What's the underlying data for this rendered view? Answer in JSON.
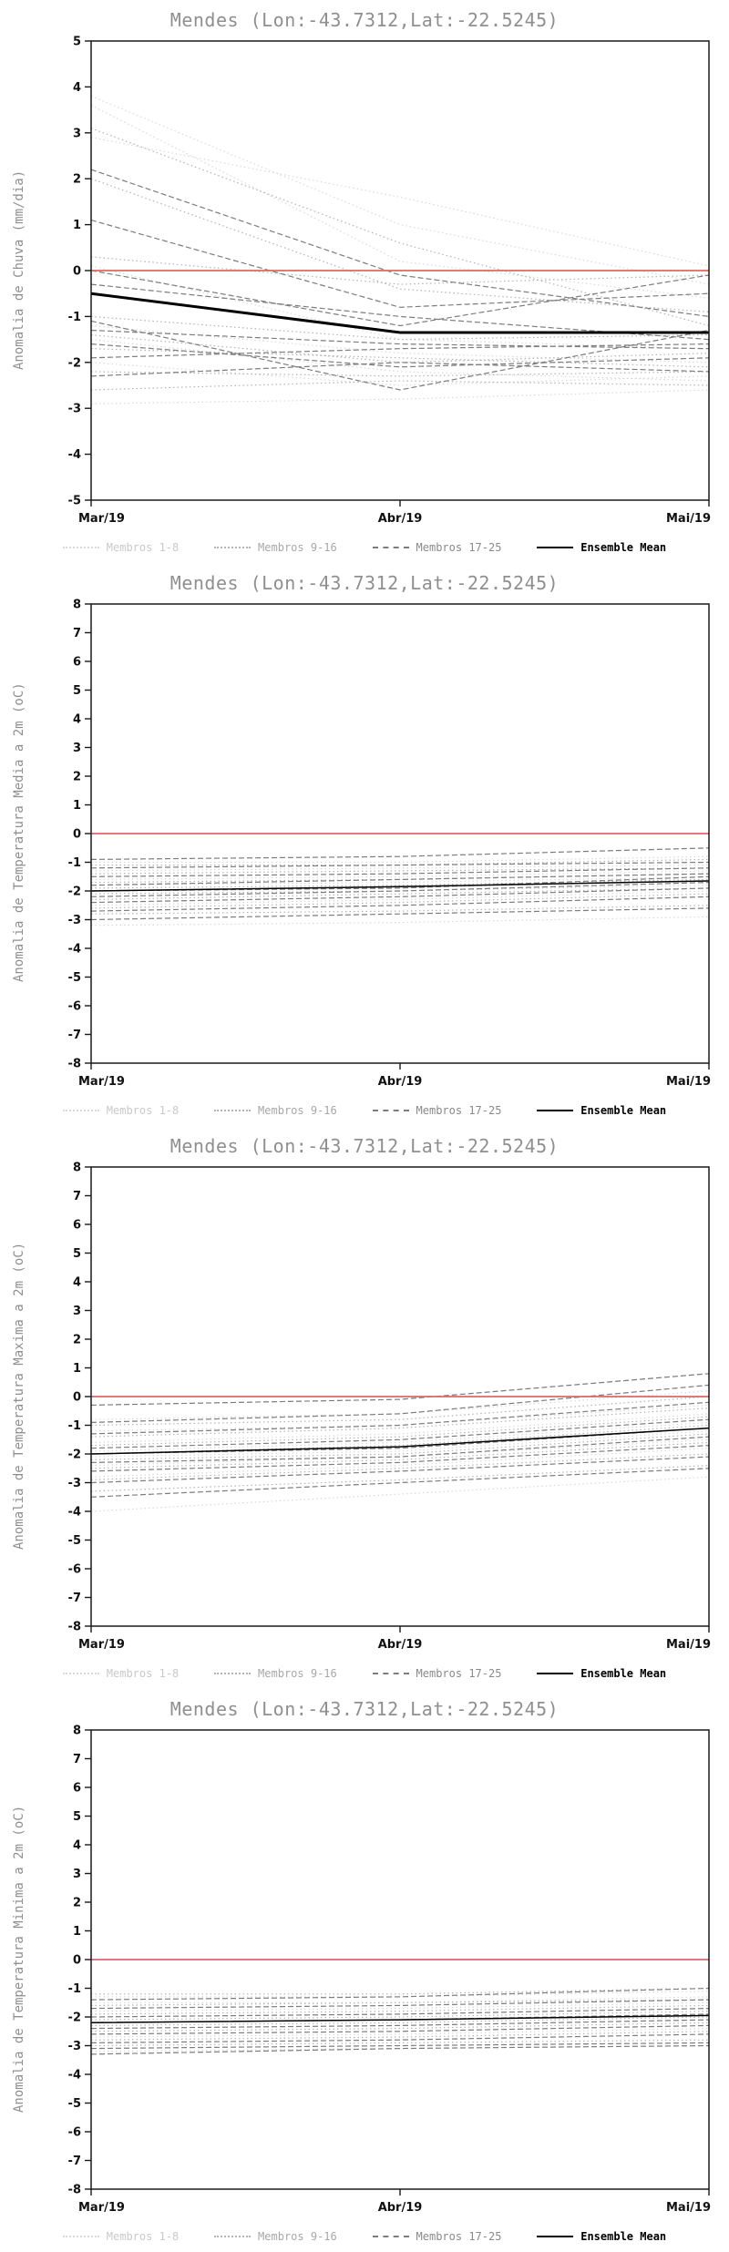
{
  "colors": {
    "zero_line": "#e06666",
    "axis": "#1a1a1a",
    "title_text": "#8f8f8f",
    "tick_text": "#111111"
  },
  "legend": {
    "items": [
      {
        "label": "Membros 1-8",
        "color": "#d9d9d9",
        "label_color": "#c9c9c9",
        "css_style": "dotted",
        "dash": "1.5,3",
        "label_bold": false
      },
      {
        "label": "Membros 9-16",
        "color": "#b3b3b3",
        "label_color": "#a8a8a8",
        "css_style": "dotted",
        "dash": "1.5,3",
        "label_bold": false
      },
      {
        "label": "Membros 17-25",
        "color": "#7d7d7d",
        "label_color": "#8a8a8a",
        "css_style": "dashed",
        "dash": "6,3",
        "label_bold": false
      },
      {
        "label": "Ensemble Mean",
        "color": "#000000",
        "label_color": "#000000",
        "css_style": "solid",
        "dash": "",
        "label_bold": true
      }
    ]
  },
  "chart_data": [
    {
      "type": "line",
      "title": "Mendes (Lon:-43.7312,Lat:-22.5245)",
      "ylabel": "Anomalia de Chuva (mm/dia)",
      "x": [
        "Mar/19",
        "Abr/19",
        "Mai/19"
      ],
      "ylim": [
        -5,
        5
      ],
      "ytick_step": 1,
      "zero_line": 0,
      "mean_line_width": 3,
      "groups": [
        {
          "name": "Membros 1-8",
          "members": [
            [
              3.8,
              1.0,
              -0.3
            ],
            [
              3.6,
              0.2,
              -0.6
            ],
            [
              2.9,
              1.6,
              0.1
            ],
            [
              0.1,
              -1.5,
              -1.7
            ],
            [
              -1.2,
              -1.8,
              -2.0
            ],
            [
              -1.5,
              -2.2,
              -2.4
            ],
            [
              -2.0,
              -2.5,
              -2.3
            ],
            [
              -2.9,
              -2.8,
              -2.6
            ]
          ]
        },
        {
          "name": "Membros 9-16",
          "members": [
            [
              3.1,
              0.6,
              -1.2
            ],
            [
              2.0,
              -0.4,
              -0.9
            ],
            [
              0.3,
              -0.3,
              -0.1
            ],
            [
              -1.0,
              -1.5,
              -1.4
            ],
            [
              -1.4,
              -2.0,
              -1.8
            ],
            [
              -1.7,
              -1.9,
              -2.1
            ],
            [
              -2.2,
              -2.3,
              -2.2
            ],
            [
              -2.6,
              -2.4,
              -2.5
            ]
          ]
        },
        {
          "name": "Membros 17-25",
          "members": [
            [
              2.2,
              -0.1,
              -1.0
            ],
            [
              1.1,
              -0.8,
              -0.5
            ],
            [
              0.0,
              -1.2,
              -0.1
            ],
            [
              -0.3,
              -1.0,
              -1.5
            ],
            [
              -1.1,
              -2.6,
              -1.3
            ],
            [
              -1.3,
              -1.6,
              -1.7
            ],
            [
              -1.6,
              -2.1,
              -1.9
            ],
            [
              -1.9,
              -1.7,
              -1.6
            ],
            [
              -2.3,
              -2.0,
              -2.2
            ]
          ]
        }
      ],
      "ensemble_mean": [
        -0.5,
        -1.35,
        -1.35
      ]
    },
    {
      "type": "line",
      "title": "Mendes (Lon:-43.7312,Lat:-22.5245)",
      "ylabel": "Anomalia de Temperatura Media a 2m (oC)",
      "x": [
        "Mar/19",
        "Abr/19",
        "Mai/19"
      ],
      "ylim": [
        -8,
        8
      ],
      "ytick_step": 1,
      "zero_line": 0,
      "mean_line_width": 1.5,
      "groups": [
        {
          "name": "Membros 1-8",
          "members": [
            [
              -1.0,
              -1.0,
              -0.8
            ],
            [
              -1.3,
              -1.2,
              -1.1
            ],
            [
              -1.6,
              -1.5,
              -1.3
            ],
            [
              -1.8,
              -1.7,
              -1.5
            ],
            [
              -2.0,
              -1.9,
              -1.6
            ],
            [
              -2.2,
              -2.0,
              -1.8
            ],
            [
              -2.5,
              -2.3,
              -2.0
            ],
            [
              -3.2,
              -3.1,
              -2.9
            ]
          ]
        },
        {
          "name": "Membros 9-16",
          "members": [
            [
              -1.1,
              -1.1,
              -0.9
            ],
            [
              -1.4,
              -1.3,
              -1.2
            ],
            [
              -1.7,
              -1.6,
              -1.4
            ],
            [
              -1.9,
              -1.8,
              -1.6
            ],
            [
              -2.1,
              -2.0,
              -1.7
            ],
            [
              -2.3,
              -2.1,
              -1.9
            ],
            [
              -2.6,
              -2.4,
              -2.1
            ],
            [
              -2.8,
              -2.7,
              -2.5
            ]
          ]
        },
        {
          "name": "Membros 17-25",
          "members": [
            [
              -0.9,
              -0.8,
              -0.5
            ],
            [
              -1.2,
              -1.1,
              -1.0
            ],
            [
              -1.5,
              -1.4,
              -1.2
            ],
            [
              -1.8,
              -1.6,
              -1.4
            ],
            [
              -2.0,
              -1.9,
              -1.5
            ],
            [
              -2.2,
              -2.0,
              -1.7
            ],
            [
              -2.4,
              -2.2,
              -1.9
            ],
            [
              -2.7,
              -2.5,
              -2.2
            ],
            [
              -3.0,
              -2.8,
              -2.6
            ]
          ]
        }
      ],
      "ensemble_mean": [
        -2.0,
        -1.85,
        -1.65
      ]
    },
    {
      "type": "line",
      "title": "Mendes (Lon:-43.7312,Lat:-22.5245)",
      "ylabel": "Anomalia de Temperatura Maxima a 2m (oC)",
      "x": [
        "Mar/19",
        "Abr/19",
        "Mai/19"
      ],
      "ylim": [
        -8,
        8
      ],
      "ytick_step": 1,
      "zero_line": 0,
      "mean_line_width": 1.5,
      "groups": [
        {
          "name": "Membros 1-8",
          "members": [
            [
              -0.8,
              -0.6,
              0.2
            ],
            [
              -1.2,
              -1.0,
              -0.3
            ],
            [
              -1.6,
              -1.3,
              -0.6
            ],
            [
              -1.9,
              -1.6,
              -0.9
            ],
            [
              -2.1,
              -1.9,
              -1.2
            ],
            [
              -2.4,
              -2.1,
              -1.5
            ],
            [
              -2.8,
              -2.4,
              -1.8
            ],
            [
              -4.0,
              -3.4,
              -2.8
            ]
          ]
        },
        {
          "name": "Membros 9-16",
          "members": [
            [
              -1.0,
              -0.8,
              0.0
            ],
            [
              -1.4,
              -1.1,
              -0.4
            ],
            [
              -1.7,
              -1.4,
              -0.7
            ],
            [
              -2.0,
              -1.7,
              -1.0
            ],
            [
              -2.2,
              -2.0,
              -1.3
            ],
            [
              -2.5,
              -2.2,
              -1.6
            ],
            [
              -2.9,
              -2.5,
              -2.0
            ],
            [
              -3.3,
              -2.9,
              -2.4
            ]
          ]
        },
        {
          "name": "Membros 17-25",
          "members": [
            [
              -0.3,
              -0.1,
              0.8
            ],
            [
              -0.9,
              -0.6,
              0.4
            ],
            [
              -1.3,
              -1.0,
              -0.2
            ],
            [
              -1.8,
              -1.5,
              -0.8
            ],
            [
              -2.0,
              -1.8,
              -1.1
            ],
            [
              -2.3,
              -2.1,
              -1.4
            ],
            [
              -2.6,
              -2.3,
              -1.7
            ],
            [
              -3.0,
              -2.6,
              -2.1
            ],
            [
              -3.5,
              -3.0,
              -2.5
            ]
          ]
        }
      ],
      "ensemble_mean": [
        -2.0,
        -1.75,
        -1.1
      ]
    },
    {
      "type": "line",
      "title": "Mendes (Lon:-43.7312,Lat:-22.5245)",
      "ylabel": "Anomalia de Temperatura Minima a 2m (oC)",
      "x": [
        "Mar/19",
        "Abr/19",
        "Mai/19"
      ],
      "ylim": [
        -8,
        8
      ],
      "ytick_step": 1,
      "zero_line": 0,
      "mean_line_width": 1.5,
      "groups": [
        {
          "name": "Membros 1-8",
          "members": [
            [
              -1.3,
              -1.3,
              -1.1
            ],
            [
              -1.5,
              -1.5,
              -1.3
            ],
            [
              -1.8,
              -1.7,
              -1.5
            ],
            [
              -2.0,
              -1.9,
              -1.7
            ],
            [
              -2.2,
              -2.1,
              -1.9
            ],
            [
              -2.4,
              -2.3,
              -2.1
            ],
            [
              -2.7,
              -2.6,
              -2.4
            ],
            [
              -3.2,
              -3.1,
              -3.0
            ]
          ]
        },
        {
          "name": "Membros 9-16",
          "members": [
            [
              -1.2,
              -1.2,
              -1.0
            ],
            [
              -1.6,
              -1.5,
              -1.4
            ],
            [
              -1.9,
              -1.8,
              -1.6
            ],
            [
              -2.1,
              -2.0,
              -1.8
            ],
            [
              -2.3,
              -2.2,
              -2.0
            ],
            [
              -2.5,
              -2.4,
              -2.2
            ],
            [
              -2.8,
              -2.7,
              -2.5
            ],
            [
              -3.0,
              -2.9,
              -2.8
            ]
          ]
        },
        {
          "name": "Membros 17-25",
          "members": [
            [
              -1.4,
              -1.3,
              -1.0
            ],
            [
              -1.7,
              -1.6,
              -1.4
            ],
            [
              -2.0,
              -1.9,
              -1.7
            ],
            [
              -2.2,
              -2.1,
              -1.9
            ],
            [
              -2.4,
              -2.3,
              -2.1
            ],
            [
              -2.6,
              -2.5,
              -2.3
            ],
            [
              -2.9,
              -2.8,
              -2.6
            ],
            [
              -3.1,
              -3.0,
              -2.9
            ],
            [
              -3.3,
              -3.1,
              -3.0
            ]
          ]
        }
      ],
      "ensemble_mean": [
        -2.2,
        -2.1,
        -1.95
      ]
    }
  ]
}
